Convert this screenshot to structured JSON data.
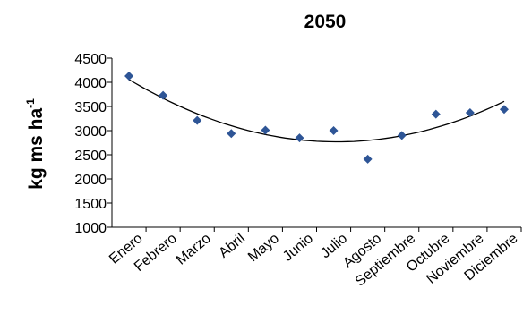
{
  "chart_data": {
    "type": "scatter",
    "title": "2050",
    "ylabel": {
      "main": "kg ms ha",
      "superscript": "-1"
    },
    "xlabel": "",
    "ylim": [
      1000,
      4500
    ],
    "yticks": [
      "1000",
      "1500",
      "2000",
      "2500",
      "3000",
      "3500",
      "4000",
      "4500"
    ],
    "categories": [
      "Enero",
      "Febrero",
      "Marzo",
      "Abril",
      "Mayo",
      "Junio",
      "Julio",
      "Agosto",
      "Septiembre",
      "Octubre",
      "Noviembre",
      "Diciembre"
    ],
    "values": [
      4130,
      3730,
      3210,
      2940,
      3010,
      2850,
      3000,
      2410,
      2900,
      3340,
      3370,
      3440
    ],
    "trendline": {
      "type": "polynomial",
      "order": 2
    },
    "grid": false,
    "legend": "none",
    "marker_color": "#2e5596"
  }
}
